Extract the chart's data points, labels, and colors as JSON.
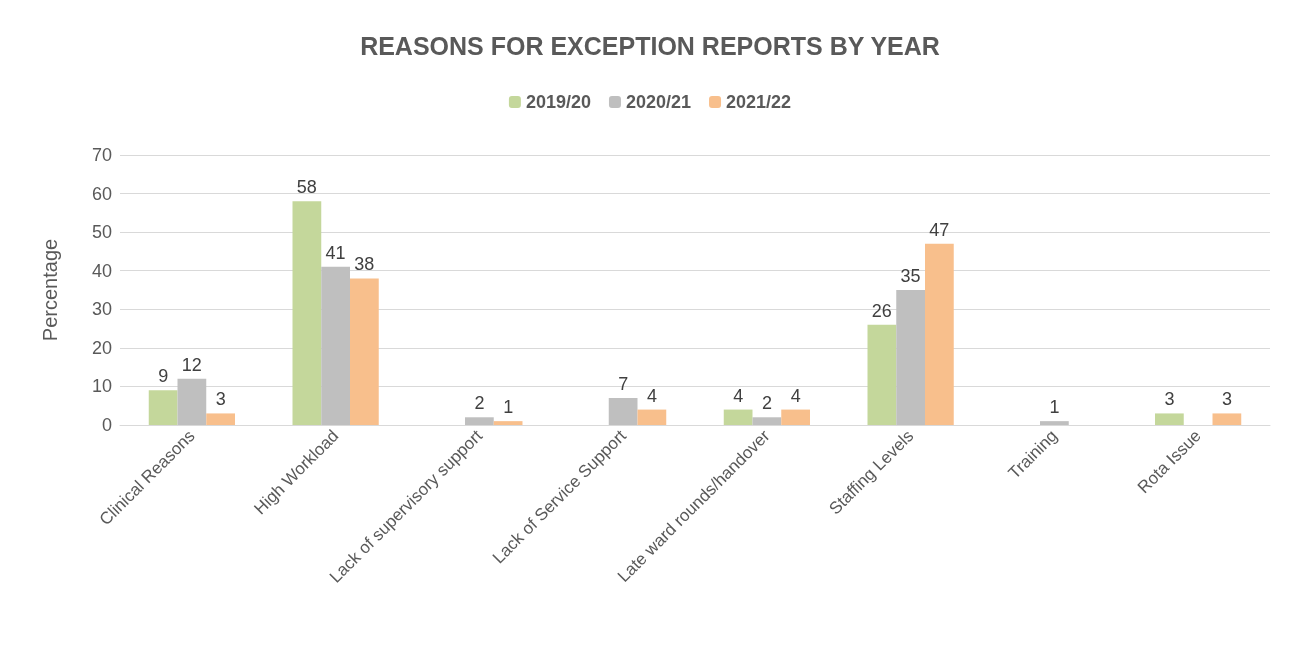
{
  "chart_data": {
    "type": "bar",
    "title": "REASONS FOR EXCEPTION REPORTS BY YEAR",
    "ylabel": "Percentage",
    "categories": [
      "Clinical Reasons",
      "High Workload",
      "Lack of supervisory support",
      "Lack of Service Support",
      "Late ward rounds/handover",
      "Staffing Levels",
      "Training",
      "Rota Issue"
    ],
    "series": [
      {
        "name": "2019/20",
        "color": "#c4d79b",
        "values": [
          9,
          58,
          null,
          null,
          4,
          26,
          null,
          3
        ]
      },
      {
        "name": "2020/21",
        "color": "#bfbfbf",
        "values": [
          12,
          41,
          2,
          7,
          2,
          35,
          1,
          null
        ]
      },
      {
        "name": "2021/22",
        "color": "#f8bf8c",
        "values": [
          3,
          38,
          1,
          4,
          4,
          47,
          null,
          3
        ]
      }
    ],
    "ylim": [
      0,
      70
    ],
    "yticks": [
      0,
      10,
      20,
      30,
      40,
      50,
      60,
      70
    ],
    "grid": "y",
    "legend": "top",
    "data_labels": true
  }
}
